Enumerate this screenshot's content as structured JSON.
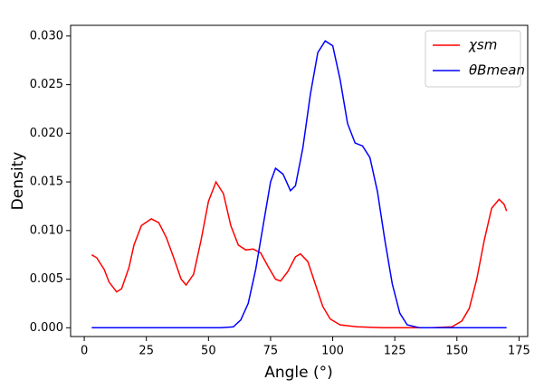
{
  "chart_data": {
    "type": "line",
    "xlabel": "Angle (°)",
    "ylabel": "Density",
    "xlim": [
      -5.5,
      178.5
    ],
    "ylim": [
      -0.0009,
      0.0311
    ],
    "xticks": [
      0,
      25,
      50,
      75,
      100,
      125,
      150,
      175
    ],
    "yticks": [
      {
        "value": 0,
        "label": "0.000"
      },
      {
        "value": 0.005,
        "label": "0.005"
      },
      {
        "value": 0.01,
        "label": "0.010"
      },
      {
        "value": 0.015,
        "label": "0.015"
      },
      {
        "value": 0.02,
        "label": "0.020"
      },
      {
        "value": 0.025,
        "label": "0.025"
      },
      {
        "value": 0.03,
        "label": "0.030"
      }
    ],
    "legend": "upper right",
    "series": [
      {
        "name": "χsm",
        "color": "#ff0000",
        "x": [
          3,
          5,
          8,
          10,
          13,
          15,
          18,
          20,
          23,
          27,
          30,
          33,
          36,
          39,
          41,
          44,
          47,
          50,
          53,
          56,
          59,
          62,
          65,
          68,
          71,
          74,
          77,
          79,
          82,
          85,
          87,
          90,
          93,
          96,
          99,
          103,
          110,
          120,
          130,
          140,
          148,
          152,
          155,
          158,
          161,
          164,
          167,
          169,
          170
        ],
        "values": [
          0.0075,
          0.0072,
          0.006,
          0.0047,
          0.0037,
          0.004,
          0.0062,
          0.0085,
          0.0105,
          0.0112,
          0.0108,
          0.0093,
          0.0072,
          0.005,
          0.0044,
          0.0055,
          0.009,
          0.013,
          0.015,
          0.0138,
          0.0105,
          0.0085,
          0.008,
          0.0081,
          0.0077,
          0.0063,
          0.005,
          0.0048,
          0.0058,
          0.0073,
          0.0076,
          0.0068,
          0.0045,
          0.0022,
          0.0009,
          0.0003,
          0.0001,
          0,
          0,
          0,
          0.0001,
          0.0007,
          0.002,
          0.005,
          0.009,
          0.0123,
          0.0132,
          0.0127,
          0.012
        ]
      },
      {
        "name": "θBmean",
        "color": "#0000ff",
        "x": [
          3,
          55,
          60,
          63,
          66,
          69,
          72,
          75,
          77,
          80,
          83,
          85,
          88,
          91,
          94,
          97,
          100,
          103,
          106,
          109,
          112,
          115,
          118,
          121,
          124,
          127,
          130,
          135,
          170
        ],
        "values": [
          0,
          0,
          0.0001,
          0.0008,
          0.0025,
          0.006,
          0.0105,
          0.015,
          0.0164,
          0.0158,
          0.0141,
          0.0146,
          0.0185,
          0.024,
          0.0283,
          0.0295,
          0.029,
          0.0255,
          0.021,
          0.019,
          0.0187,
          0.0175,
          0.014,
          0.009,
          0.0045,
          0.0015,
          0.0003,
          0,
          0
        ]
      }
    ]
  }
}
